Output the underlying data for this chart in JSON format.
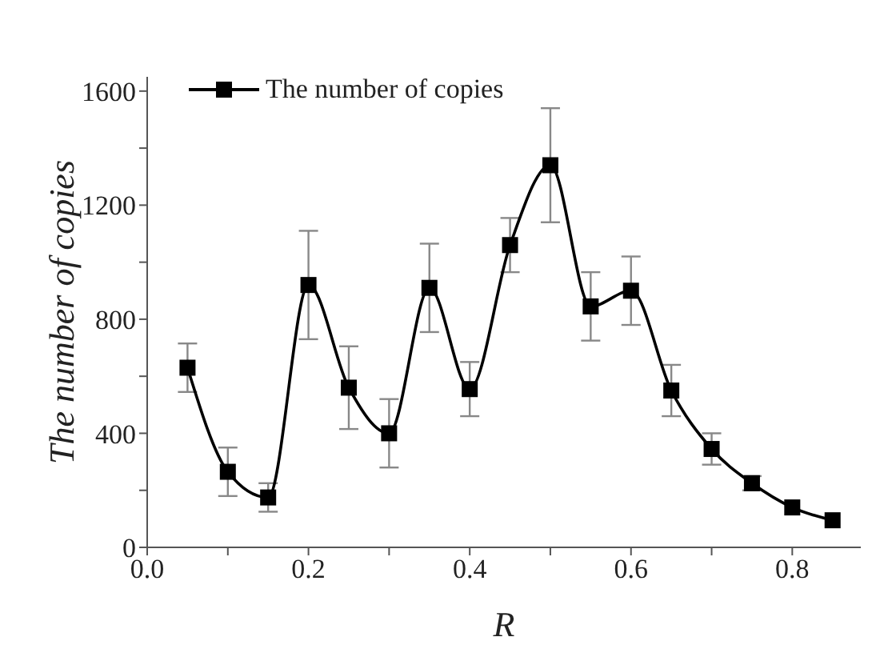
{
  "chart_data": {
    "type": "line",
    "xlabel": "R",
    "ylabel": "The number of copies",
    "x": [
      0.05,
      0.1,
      0.15,
      0.2,
      0.25,
      0.3,
      0.35,
      0.4,
      0.45,
      0.5,
      0.55,
      0.6,
      0.65,
      0.7,
      0.75,
      0.8,
      0.85
    ],
    "series": [
      {
        "name": "The number of copies",
        "color": "#000000",
        "values": [
          630,
          265,
          175,
          920,
          560,
          400,
          910,
          555,
          1060,
          1340,
          845,
          900,
          550,
          345,
          225,
          140,
          95
        ],
        "errors": [
          85,
          85,
          50,
          190,
          145,
          120,
          155,
          95,
          95,
          200,
          120,
          120,
          90,
          55,
          25,
          null,
          null
        ]
      }
    ],
    "xlim": [
      0,
      0.885
    ],
    "xticks": [
      {
        "value": 0,
        "label": "0.0"
      },
      {
        "value": 0.1,
        "label": null
      },
      {
        "value": 0.2,
        "label": "0.2"
      },
      {
        "value": 0.3,
        "label": null
      },
      {
        "value": 0.4,
        "label": "0.4"
      },
      {
        "value": 0.5,
        "label": null
      },
      {
        "value": 0.6,
        "label": "0.6"
      },
      {
        "value": 0.7,
        "label": null
      },
      {
        "value": 0.8,
        "label": "0.8"
      }
    ],
    "ylim": [
      0,
      1650
    ],
    "yticks": [
      0,
      {
        "value": 200,
        "label": null
      },
      400,
      {
        "value": 600,
        "label": null
      },
      800,
      {
        "value": 1000,
        "label": null
      },
      1200,
      {
        "value": 1400,
        "label": null
      },
      1600
    ],
    "marker": "square",
    "line_style": "solid",
    "legend": "top left",
    "grid": false
  }
}
